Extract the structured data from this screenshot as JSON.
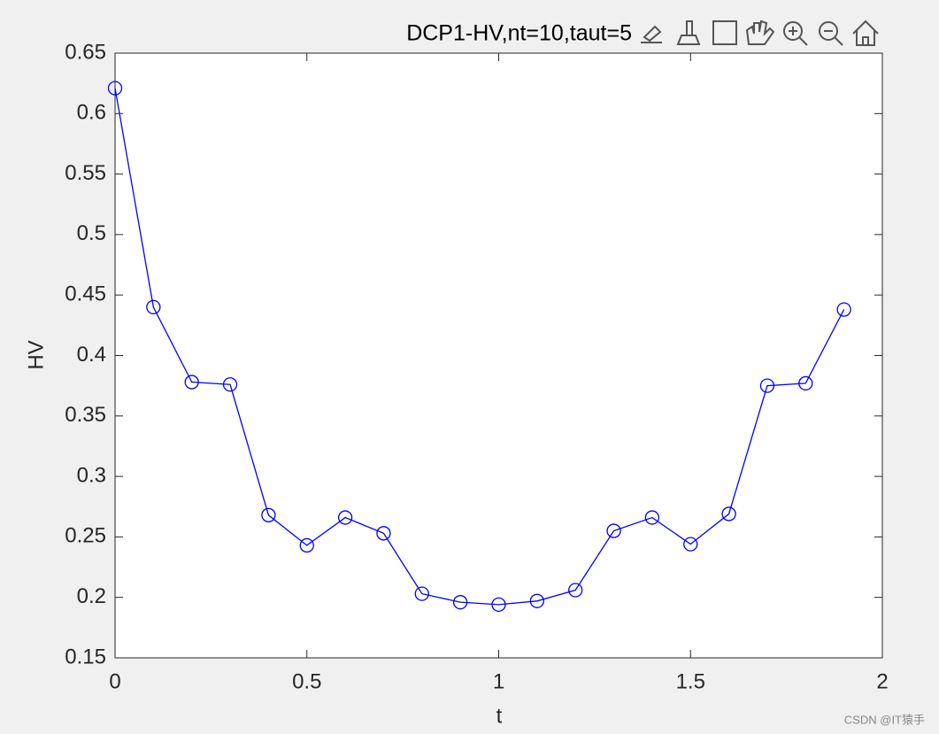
{
  "chart_data": {
    "type": "line",
    "title": "DCP1-HV,nt=10,taut=5",
    "xlabel": "t",
    "ylabel": "HV",
    "x": [
      0,
      0.1,
      0.2,
      0.3,
      0.4,
      0.5,
      0.6,
      0.7,
      0.8,
      0.9,
      1.0,
      1.1,
      1.2,
      1.3,
      1.4,
      1.5,
      1.6,
      1.7,
      1.8,
      1.9
    ],
    "series": [
      {
        "color": "#0000ff",
        "marker": "circle",
        "values": [
          0.621,
          0.44,
          0.378,
          0.376,
          0.268,
          0.243,
          0.266,
          0.253,
          0.203,
          0.196,
          0.194,
          0.197,
          0.206,
          0.255,
          0.266,
          0.244,
          0.269,
          0.375,
          0.377,
          0.438
        ]
      }
    ],
    "xlim": [
      0,
      2
    ],
    "xticks": [
      0,
      0.5,
      1,
      1.5,
      2
    ],
    "ylim": [
      0.15,
      0.65
    ],
    "yticks": [
      0.15,
      0.2,
      0.25,
      0.3,
      0.35,
      0.4,
      0.45,
      0.5,
      0.55,
      0.6,
      0.65
    ],
    "grid": false,
    "watermark": "CSDN @IT猿手"
  }
}
